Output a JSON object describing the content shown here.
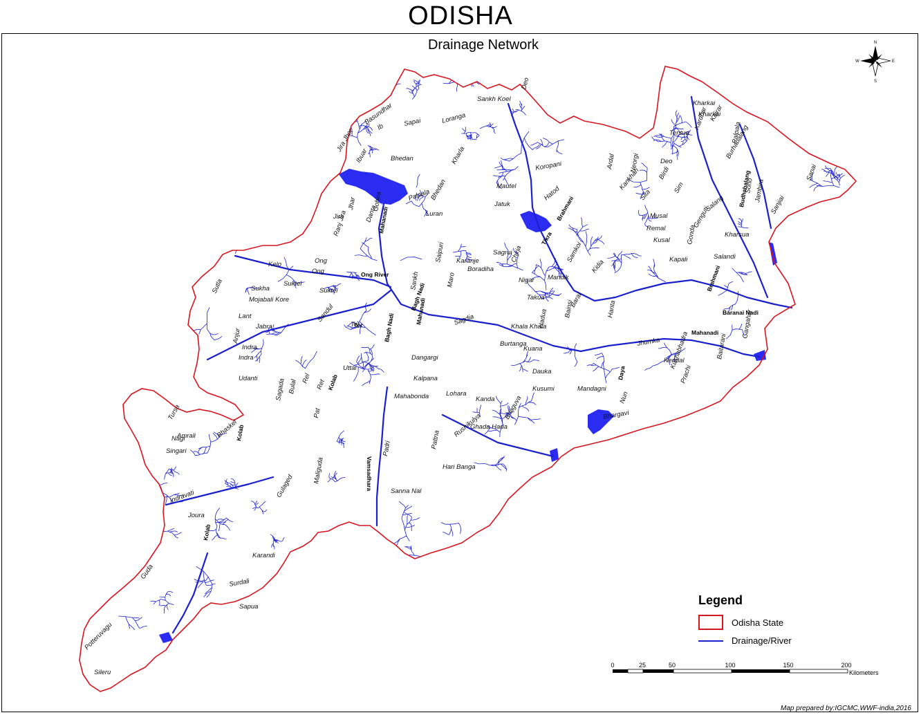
{
  "map": {
    "title": "ODISHA",
    "subtitle": "Drainage Network",
    "credit": "Map prepared by:IGCMC,WWF-india,2016",
    "colors": {
      "boundary": "#d8141f",
      "river": "#1a1fd0",
      "water": "#2a2cf2"
    }
  },
  "legend": {
    "title": "Legend",
    "items": [
      {
        "label": "Odisha State",
        "symbol": "red-box"
      },
      {
        "label": "Drainage/River",
        "symbol": "blue-line"
      }
    ]
  },
  "scale_bar": {
    "ticks": [
      "0",
      "25",
      "50",
      "100",
      "150",
      "200"
    ],
    "unit": "Kilometers"
  },
  "compass": {
    "n": "N",
    "s": "S",
    "e": "E",
    "w": "W"
  },
  "river_labels": [
    "Sankh Koel",
    "Deo",
    "Basundhar",
    "Ib",
    "Sapai",
    "Loranga",
    "Jira Jhor",
    "Ibuar",
    "Bhedan",
    "Palpala",
    "Kharla",
    "Koropani",
    "Kharkai",
    "Kairar",
    "Kardhar",
    "Burhabalang",
    "Palpala",
    "Hatod",
    "Jatuk",
    "Gohira",
    "Mahanadi",
    "Danta",
    "Luran",
    "Bhedan",
    "Mautel",
    "Jhar",
    "Jira",
    "Ranj",
    "Ong",
    "Kelo",
    "Suktel",
    "Sukha",
    "Mojabali Kore",
    "Suktel",
    "Ong River",
    "Sutla",
    "Tel",
    "Lant",
    "Jabra",
    "Sandul",
    "Anjur",
    "Indra",
    "Udanti",
    "Indravati",
    "Joura",
    "Kolab",
    "Karandi",
    "Guda",
    "Potteruvagu",
    "Sileru",
    "Rel",
    "Ret",
    "Kolab",
    "Surdali",
    "Sapua",
    "Tel",
    "Vamsadhara",
    "Padri",
    "Dangargi",
    "Kalpana",
    "Mahabonda",
    "Lohara",
    "Kanda",
    "Rushikulya",
    "Bhaguva",
    "Dauka",
    "Kusumi",
    "Mandagni",
    "Daya",
    "Nun",
    "Bhargavi",
    "Jhumka",
    "Kendal",
    "Kushabhadra",
    "Prachi",
    "Mahanadi",
    "Kuana",
    "Burtanga",
    "Sagdia",
    "Khala Khala",
    "Nigar",
    "Takua",
    "Mandik",
    "Brahmani",
    "Baitarani",
    "Kharsua",
    "Salandi",
    "Kapali",
    "Gonda",
    "Genguti",
    "Salang",
    "Sono",
    "Budhabalang",
    "Jambira",
    "Gangahar",
    "Baranai Nadi",
    "Sanjiai",
    "Sanai",
    "Tentua",
    "Kharkai",
    "Ardal",
    "Neorgi",
    "Kankhari",
    "Sita",
    "Musal",
    "Remal",
    "Kusal",
    "Sim",
    "Birdi",
    "Deo",
    "Hadua",
    "Bainsi",
    "Kidia",
    "Hanta",
    "Ghada Hada",
    "Pattna",
    "Hari Banga",
    "Sanna Nal",
    "Ong",
    "Bagh Nadi",
    "Sankh",
    "Indra",
    "Uttai",
    "Bulal",
    "Sagada",
    "Pat",
    "Kolab",
    "Maliguda",
    "Gulaged",
    "Amrali",
    "Singari",
    "Tursa",
    "Nagi",
    "Bhaskel",
    "Mahanadi",
    "Saipuri",
    "Karanje",
    "Boradiha",
    "Maro",
    "Jira",
    "Bagh Nadi",
    "Brahmani",
    "Tikra",
    "Samkoi",
    "Baral",
    "Chirja",
    "Sagrui"
  ]
}
